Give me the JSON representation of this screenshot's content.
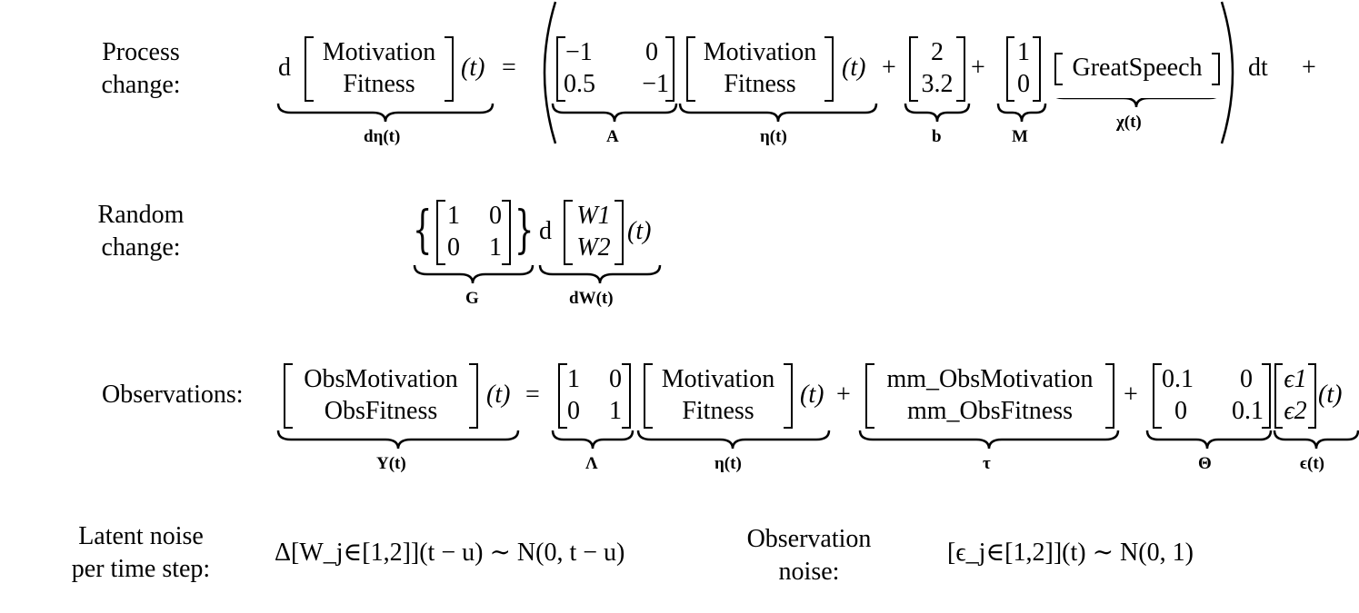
{
  "labels": {
    "process": [
      "Process",
      "change:"
    ],
    "random": [
      "Random",
      "change:"
    ],
    "observations": "Observations:",
    "latent_noise": [
      "Latent noise",
      "per time step:"
    ],
    "observation_noise": [
      "Observation",
      "noise:"
    ]
  },
  "process": {
    "d": "d",
    "eta_rows": [
      "Motivation",
      "Fitness"
    ],
    "t": "(t)",
    "eq": "=",
    "A": [
      [
        "−1",
        "0"
      ],
      [
        "0.5",
        "−1"
      ]
    ],
    "b": [
      "2",
      "3.2"
    ],
    "M": [
      "1",
      "0"
    ],
    "chi": "GreatSpeech",
    "dt": "dt",
    "plus": "+",
    "under": {
      "deta": "dη(t)",
      "A": "A",
      "eta": "η(t)",
      "b": "b",
      "M": "M",
      "chi": "χ(t)"
    }
  },
  "random": {
    "G": [
      [
        "1",
        "0"
      ],
      [
        "0",
        "1"
      ]
    ],
    "d": "d",
    "W": [
      "W1",
      "W2"
    ],
    "t": "(t)",
    "under": {
      "G": "G",
      "dW": "dW(t)"
    }
  },
  "observations": {
    "Y_rows": [
      "ObsMotivation",
      "ObsFitness"
    ],
    "Lambda": [
      [
        "1",
        "0"
      ],
      [
        "0",
        "1"
      ]
    ],
    "eta_rows": [
      "Motivation",
      "Fitness"
    ],
    "tau": [
      "mm_ObsMotivation",
      "mm_ObsFitness"
    ],
    "Theta": [
      [
        "0.1",
        "0"
      ],
      [
        "0",
        "0.1"
      ]
    ],
    "eps": [
      "ϵ1",
      "ϵ2"
    ],
    "t": "(t)",
    "under": {
      "Y": "Y(t)",
      "Lambda": "Λ",
      "eta": "η(t)",
      "tau": "τ",
      "Theta": "Θ",
      "eps": "ϵ(t)"
    }
  },
  "noise": {
    "latent": "Δ[W_j∈[1,2]](t − u) ∼ N(0, t − u)",
    "observation": "[ϵ_j∈[1,2]](t) ∼ N(0, 1)"
  }
}
